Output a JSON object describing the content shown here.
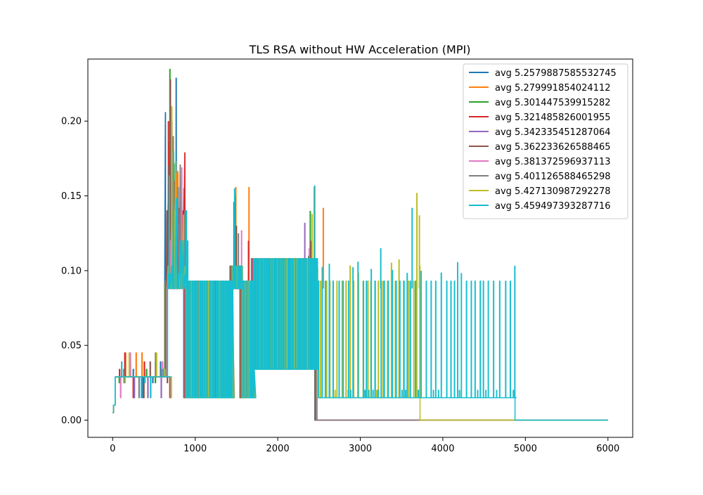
{
  "chart_data": {
    "type": "line",
    "title": "TLS RSA without HW Acceleration (MPI)",
    "xlabel": "",
    "ylabel": "",
    "xlim": [
      -300,
      6300
    ],
    "ylim": [
      -0.0115,
      0.2415
    ],
    "xticks": [
      0,
      1000,
      2000,
      3000,
      4000,
      5000,
      6000
    ],
    "xtick_labels": [
      "0",
      "1000",
      "2000",
      "3000",
      "4000",
      "5000",
      "6000"
    ],
    "yticks": [
      0.0,
      0.05,
      0.1,
      0.15,
      0.2
    ],
    "ytick_labels": [
      "0.00",
      "0.05",
      "0.10",
      "0.15",
      "0.20"
    ],
    "grid": false,
    "legend_position": "top-right",
    "series": [
      {
        "name": "avg 5.2579887585532745",
        "color": "#1f77b4",
        "end": 2470,
        "spikes": [
          [
            780,
            0.229
          ],
          [
            1480,
            0.146
          ],
          [
            2200,
            0.108
          ]
        ]
      },
      {
        "name": "avg 5.279991854024112",
        "color": "#ff7f0e",
        "end": 2580,
        "spikes": [
          [
            690,
            0.186
          ],
          [
            800,
            0.156
          ],
          [
            1500,
            0.156
          ],
          [
            1660,
            0.156
          ],
          [
            2450,
            0.156
          ],
          [
            2560,
            0.142
          ]
        ]
      },
      {
        "name": "avg 5.301447539915282",
        "color": "#2ca02c",
        "end": 2480,
        "spikes": [
          [
            700,
            0.235
          ],
          [
            1490,
            0.15
          ],
          [
            2400,
            0.14
          ]
        ]
      },
      {
        "name": "avg 5.321485826001955",
        "color": "#d62728",
        "end": 2500,
        "spikes": [
          [
            680,
            0.2
          ],
          [
            760,
            0.16
          ],
          [
            810,
            0.142
          ],
          [
            1650,
            0.12
          ]
        ]
      },
      {
        "name": "avg 5.342335451287064",
        "color": "#9467bd",
        "end": 2490,
        "spikes": [
          [
            720,
            0.2
          ],
          [
            1480,
            0.14
          ],
          [
            2330,
            0.132
          ]
        ]
      },
      {
        "name": "avg 5.362233626588465",
        "color": "#8c564b",
        "end": 2490,
        "spikes": [
          [
            700,
            0.228
          ],
          [
            1500,
            0.13
          ],
          [
            2400,
            0.12
          ]
        ]
      },
      {
        "name": "avg 5.381372596937113",
        "color": "#e377c2",
        "end": 2470,
        "spikes": [
          [
            720,
            0.18
          ],
          [
            1560,
            0.127
          ],
          [
            2380,
            0.115
          ]
        ]
      },
      {
        "name": "avg 5.401126588465298",
        "color": "#7f7f7f",
        "end": 2480,
        "spikes": [
          [
            730,
            0.19
          ],
          [
            1520,
            0.125
          ],
          [
            2370,
            0.11
          ]
        ]
      },
      {
        "name": "avg 5.427130987292278",
        "color": "#bcbd22",
        "end": 3720,
        "spikes": [
          [
            710,
            0.21
          ],
          [
            2410,
            0.138
          ],
          [
            3680,
            0.152
          ],
          [
            3710,
            0.137
          ]
        ]
      },
      {
        "name": "avg 5.459497393287716",
        "color": "#17becf",
        "end": 4870,
        "spikes": [
          [
            730,
            0.18
          ],
          [
            1470,
            0.155
          ],
          [
            2440,
            0.157
          ],
          [
            3620,
            0.142
          ],
          [
            3240,
            0.115
          ]
        ]
      }
    ]
  }
}
